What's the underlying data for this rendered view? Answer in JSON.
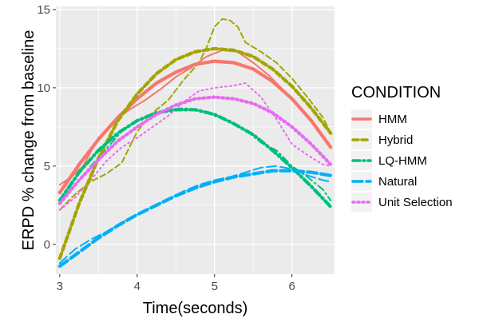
{
  "chart_data": {
    "type": "line",
    "xlabel": "Time(seconds)",
    "ylabel": "ERPD % change from baseline",
    "xlim": [
      2.95,
      6.55
    ],
    "ylim": [
      -1.9,
      15.2
    ],
    "x_ticks": [
      3,
      4,
      5,
      6
    ],
    "y_ticks": [
      0,
      5,
      10,
      15
    ],
    "grid": true,
    "legend": {
      "title": "CONDITION",
      "position": "right"
    },
    "series": [
      {
        "name": "HMM",
        "color": "#F8766D",
        "linetype": "solid",
        "raw": {
          "x": [
            3.0,
            3.15,
            3.3,
            3.5,
            3.7,
            3.9,
            4.1,
            4.3,
            4.5,
            4.7,
            4.9,
            5.1,
            5.3,
            5.5,
            5.7,
            5.9,
            6.1,
            6.3,
            6.5
          ],
          "y": [
            3.8,
            4.3,
            5.0,
            6.8,
            7.9,
            8.6,
            9.2,
            9.9,
            10.7,
            11.3,
            12.0,
            12.4,
            12.3,
            11.6,
            10.8,
            9.8,
            8.8,
            7.6,
            6.2
          ]
        },
        "fit": {
          "x": [
            3.0,
            3.25,
            3.5,
            3.75,
            4.0,
            4.25,
            4.5,
            4.75,
            5.0,
            5.25,
            5.5,
            5.75,
            6.0,
            6.25,
            6.5
          ],
          "y": [
            3.3,
            5.1,
            6.7,
            8.1,
            9.3,
            10.3,
            11.0,
            11.5,
            11.7,
            11.6,
            11.2,
            10.4,
            9.3,
            7.9,
            6.2
          ]
        }
      },
      {
        "name": "Hybrid",
        "color": "#A3A500",
        "linetype": "dashed",
        "raw": {
          "x": [
            3.0,
            3.2,
            3.4,
            3.6,
            3.8,
            4.0,
            4.2,
            4.4,
            4.6,
            4.8,
            4.9,
            5.0,
            5.1,
            5.2,
            5.3,
            5.4,
            5.6,
            5.8,
            6.0,
            6.2,
            6.4,
            6.5
          ],
          "y": [
            2.2,
            3.2,
            4.0,
            4.5,
            5.2,
            7.2,
            8.4,
            9.2,
            10.5,
            11.6,
            12.6,
            13.9,
            14.4,
            14.3,
            13.9,
            12.9,
            12.3,
            11.6,
            10.6,
            9.4,
            8.1,
            7.1
          ]
        },
        "fit": {
          "x": [
            3.0,
            3.25,
            3.5,
            3.75,
            4.0,
            4.25,
            4.5,
            4.75,
            5.0,
            5.25,
            5.5,
            5.75,
            6.0,
            6.25,
            6.5
          ],
          "y": [
            -0.9,
            2.6,
            5.5,
            7.9,
            9.6,
            10.9,
            11.8,
            12.3,
            12.5,
            12.4,
            12.0,
            11.2,
            10.1,
            8.7,
            7.1
          ]
        }
      },
      {
        "name": "LQ-HMM",
        "color": "#00BF7D",
        "linetype": "dotdash",
        "raw": {
          "x": [
            3.0,
            3.2,
            3.4,
            3.6,
            3.8,
            4.0,
            4.2,
            4.4,
            4.6,
            4.8,
            5.0,
            5.2,
            5.4,
            5.6,
            5.8,
            6.0,
            6.2,
            6.4,
            6.5
          ],
          "y": [
            2.8,
            3.8,
            5.0,
            6.1,
            7.2,
            7.9,
            8.3,
            8.6,
            8.7,
            8.6,
            8.2,
            7.9,
            7.3,
            6.5,
            6.0,
            5.0,
            4.3,
            3.5,
            2.8
          ]
        },
        "fit": {
          "x": [
            3.0,
            3.25,
            3.5,
            3.75,
            4.0,
            4.25,
            4.5,
            4.75,
            5.0,
            5.25,
            5.5,
            5.75,
            6.0,
            6.25,
            6.5
          ],
          "y": [
            2.8,
            4.6,
            6.0,
            7.1,
            7.9,
            8.4,
            8.6,
            8.6,
            8.3,
            7.7,
            7.0,
            6.0,
            4.9,
            3.7,
            2.4
          ]
        }
      },
      {
        "name": "Natural",
        "color": "#00B0F6",
        "linetype": "longdash",
        "raw": {
          "x": [
            3.0,
            3.2,
            3.4,
            3.6,
            3.8,
            4.0,
            4.2,
            4.4,
            4.6,
            4.8,
            5.0,
            5.2,
            5.4,
            5.6,
            5.8,
            6.0,
            6.2,
            6.4,
            6.5
          ],
          "y": [
            -1.2,
            -0.3,
            0.3,
            0.8,
            1.4,
            1.9,
            2.4,
            2.9,
            3.4,
            3.8,
            4.1,
            4.3,
            4.6,
            4.9,
            5.0,
            4.8,
            4.4,
            4.1,
            4.0
          ]
        },
        "fit": {
          "x": [
            3.0,
            3.25,
            3.5,
            3.75,
            4.0,
            4.25,
            4.5,
            4.75,
            5.0,
            5.25,
            5.5,
            5.75,
            6.0,
            6.25,
            6.5
          ],
          "y": [
            -1.4,
            -0.5,
            0.4,
            1.2,
            1.9,
            2.5,
            3.1,
            3.6,
            4.0,
            4.3,
            4.5,
            4.7,
            4.7,
            4.6,
            4.4
          ]
        }
      },
      {
        "name": "Unit Selection",
        "color": "#E76BF3",
        "linetype": "dotted",
        "raw": {
          "x": [
            3.0,
            3.2,
            3.4,
            3.6,
            3.8,
            4.0,
            4.2,
            4.4,
            4.6,
            4.8,
            5.0,
            5.2,
            5.4,
            5.6,
            5.8,
            6.0,
            6.2,
            6.4,
            6.5
          ],
          "y": [
            2.2,
            3.0,
            4.1,
            5.3,
            6.2,
            6.8,
            7.5,
            8.2,
            9.1,
            9.8,
            10.0,
            10.1,
            10.3,
            9.4,
            8.0,
            6.4,
            5.7,
            5.1,
            5.0
          ]
        },
        "fit": {
          "x": [
            3.0,
            3.25,
            3.5,
            3.75,
            4.0,
            4.25,
            4.5,
            4.75,
            5.0,
            5.25,
            5.5,
            5.75,
            6.0,
            6.25,
            6.5
          ],
          "y": [
            2.6,
            4.1,
            5.4,
            6.6,
            7.5,
            8.3,
            8.9,
            9.3,
            9.4,
            9.3,
            9.0,
            8.4,
            7.5,
            6.4,
            5.1
          ]
        }
      }
    ]
  }
}
